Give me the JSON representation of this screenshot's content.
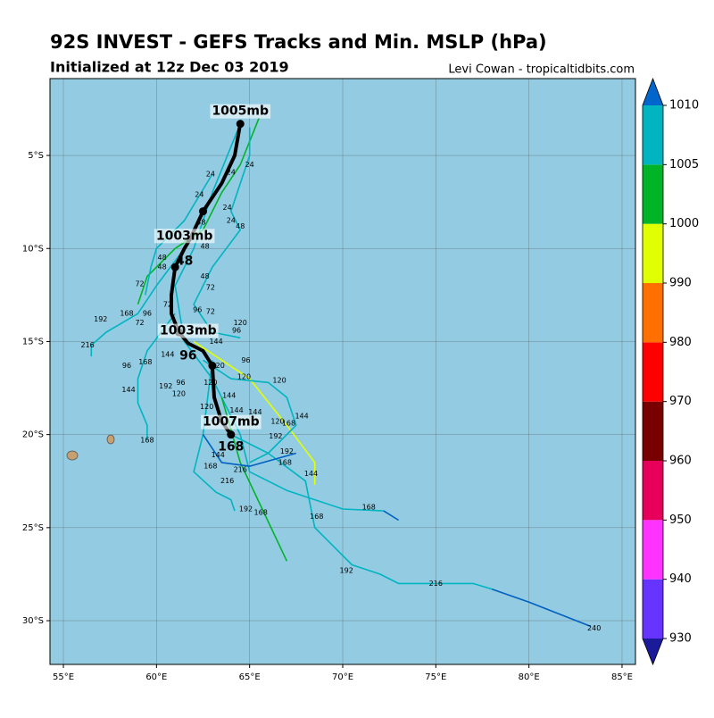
{
  "chart_data": {
    "type": "track-map",
    "title": "92S INVEST - GEFS Tracks and Min. MSLP (hPa)",
    "subtitle": "Initialized at 12z Dec 03 2019",
    "credit": "Levi Cowan - tropicaltidbits.com",
    "xlim": [
      54.28,
      85.72
    ],
    "ylim": [
      -32.35,
      -0.87
    ],
    "xticks": [
      {
        "value": 55,
        "label": "55°E"
      },
      {
        "value": 60,
        "label": "60°E"
      },
      {
        "value": 65,
        "label": "65°E"
      },
      {
        "value": 70,
        "label": "70°E"
      },
      {
        "value": 75,
        "label": "75°E"
      },
      {
        "value": 80,
        "label": "80°E"
      },
      {
        "value": 85,
        "label": "85°E"
      }
    ],
    "yticks": [
      {
        "value": -5,
        "label": "5°S"
      },
      {
        "value": -10,
        "label": "10°S"
      },
      {
        "value": -15,
        "label": "15°S"
      },
      {
        "value": -20,
        "label": "20°S"
      },
      {
        "value": -25,
        "label": "25°S"
      },
      {
        "value": -30,
        "label": "30°S"
      }
    ],
    "grid": true,
    "ocean_color": "#93cce2",
    "tracks": [
      {
        "color": "#00b4c0",
        "lon": [
          64.5,
          63,
          62,
          61,
          61.5,
          63,
          64.5,
          65,
          67,
          70,
          72.2
        ],
        "lat": [
          -3.3,
          -7,
          -10,
          -12,
          -15,
          -17,
          -20,
          -22,
          -23,
          -24,
          -24.1
        ]
      },
      {
        "color": "#0060c0",
        "lon": [
          72.2,
          73
        ],
        "lat": [
          -24.1,
          -24.6
        ]
      },
      {
        "color": "#00b4c0",
        "lon": [
          64,
          66,
          68,
          68.5,
          69.5,
          70.5,
          72,
          73,
          77,
          78
        ],
        "lat": [
          -20,
          -21,
          -22.5,
          -25,
          -26,
          -27,
          -27.5,
          -28,
          -28,
          -28.3
        ]
      },
      {
        "color": "#0060c0",
        "lon": [
          78,
          80,
          83.3
        ],
        "lat": [
          -28.3,
          -29,
          -30.3
        ]
      },
      {
        "color": "#00b428",
        "lon": [
          63.5,
          64.5,
          67
        ],
        "lat": [
          -18,
          -21.5,
          -26.8
        ]
      },
      {
        "color": "#e0ff00",
        "lon": [
          62,
          65,
          67,
          68.5,
          68.5
        ],
        "lat": [
          -15,
          -17,
          -19.5,
          -21.5,
          -22.7
        ]
      },
      {
        "color": "#00b4c0",
        "lon": [
          61.5,
          60,
          59,
          57.3,
          56.5,
          56.5
        ],
        "lat": [
          -10,
          -12,
          -13.5,
          -14.5,
          -15.2,
          -15.8
        ]
      },
      {
        "color": "#00b4c0",
        "lon": [
          61,
          59.5,
          59,
          59,
          59.5,
          59.5
        ],
        "lat": [
          -13.5,
          -15.5,
          -17,
          -18.3,
          -19.5,
          -20.3
        ]
      },
      {
        "color": "#00b4c0",
        "lon": [
          63,
          62.5,
          62,
          63.2,
          64,
          64.2
        ],
        "lat": [
          -16,
          -20,
          -22,
          -23.1,
          -23.5,
          -24.1
        ]
      },
      {
        "color": "#00b428",
        "lon": [
          65.5,
          64.5,
          63.5,
          62.5,
          61,
          59.5,
          59
        ],
        "lat": [
          -3,
          -5.5,
          -7,
          -9,
          -10,
          -11.5,
          -13
        ]
      },
      {
        "color": "#00b4c0",
        "lon": [
          65,
          65,
          64,
          64.5,
          63,
          62,
          63,
          64.5
        ],
        "lat": [
          -3.5,
          -5,
          -8,
          -9,
          -11,
          -13,
          -14.5,
          -14.8
        ]
      },
      {
        "color": "#00b4c0",
        "lon": [
          62.5,
          64,
          66,
          67,
          67.5,
          66,
          65
        ],
        "lat": [
          -16,
          -17,
          -17.2,
          -18,
          -19.5,
          -21,
          -21.5
        ]
      },
      {
        "color": "#0060c0",
        "lon": [
          62.5,
          63.5,
          65,
          67.5
        ],
        "lat": [
          -20,
          -21.5,
          -21.7,
          -21
        ]
      },
      {
        "color": "#00b4c0",
        "lon": [
          63,
          61.5,
          60,
          59.7,
          59.4
        ],
        "lat": [
          -6,
          -8.5,
          -10,
          -11,
          -12.5
        ]
      }
    ],
    "hour_labels": [
      {
        "label": "24",
        "lon": 62.9,
        "lat": -6
      },
      {
        "label": "24",
        "lon": 64,
        "lat": -5.9
      },
      {
        "label": "24",
        "lon": 65,
        "lat": -5.5
      },
      {
        "label": "24",
        "lon": 62.3,
        "lat": -7.1
      },
      {
        "label": "24",
        "lon": 63.8,
        "lat": -7.8
      },
      {
        "label": "24",
        "lon": 64,
        "lat": -8.5
      },
      {
        "label": "48",
        "lon": 64.5,
        "lat": -8.8
      },
      {
        "label": "48",
        "lon": 62.4,
        "lat": -8.6
      },
      {
        "label": "48",
        "lon": 60.3,
        "lat": -10.5
      },
      {
        "label": "48",
        "lon": 60.3,
        "lat": -11
      },
      {
        "label": "48",
        "lon": 62.6,
        "lat": -11.5
      },
      {
        "label": "48",
        "lon": 62.6,
        "lat": -9.9
      },
      {
        "label": "72",
        "lon": 59.1,
        "lat": -11.9
      },
      {
        "label": "72",
        "lon": 62.9,
        "lat": -12.1
      },
      {
        "label": "72",
        "lon": 60.6,
        "lat": -13
      },
      {
        "label": "72",
        "lon": 62.9,
        "lat": -13.4
      },
      {
        "label": "72",
        "lon": 59.1,
        "lat": -14
      },
      {
        "label": "96",
        "lon": 62.2,
        "lat": -13.3
      },
      {
        "label": "96",
        "lon": 64.3,
        "lat": -14.4
      },
      {
        "label": "96",
        "lon": 59.5,
        "lat": -13.5
      },
      {
        "label": "96",
        "lon": 64.8,
        "lat": -16
      },
      {
        "label": "96",
        "lon": 58.4,
        "lat": -16.3
      },
      {
        "label": "96",
        "lon": 61.3,
        "lat": -17.2
      },
      {
        "label": "120",
        "lon": 64.5,
        "lat": -14
      },
      {
        "label": "120",
        "lon": 63.3,
        "lat": -16.3
      },
      {
        "label": "120",
        "lon": 62.9,
        "lat": -17.2
      },
      {
        "label": "120",
        "lon": 64.7,
        "lat": -16.9
      },
      {
        "label": "120",
        "lon": 66.6,
        "lat": -17.1
      },
      {
        "label": "120",
        "lon": 61.2,
        "lat": -17.8
      },
      {
        "label": "120",
        "lon": 62.7,
        "lat": -18.5
      },
      {
        "label": "120",
        "lon": 66.5,
        "lat": -19.3
      },
      {
        "label": "144",
        "lon": 63.2,
        "lat": -15
      },
      {
        "label": "144",
        "lon": 60.6,
        "lat": -15.7
      },
      {
        "label": "144",
        "lon": 58.5,
        "lat": -17.6
      },
      {
        "label": "144",
        "lon": 63.9,
        "lat": -17.9
      },
      {
        "label": "144",
        "lon": 64.3,
        "lat": -18.7
      },
      {
        "label": "144",
        "lon": 65.3,
        "lat": -18.8
      },
      {
        "label": "144",
        "lon": 67.8,
        "lat": -19
      },
      {
        "label": "144",
        "lon": 63.3,
        "lat": -21.1
      },
      {
        "label": "144",
        "lon": 68.3,
        "lat": -22.1
      },
      {
        "label": "168",
        "lon": 59.4,
        "lat": -16.1
      },
      {
        "label": "168",
        "lon": 67.1,
        "lat": -19.4
      },
      {
        "label": "168",
        "lon": 59.5,
        "lat": -20.3
      },
      {
        "label": "168",
        "lon": 62.9,
        "lat": -21.7
      },
      {
        "label": "168",
        "lon": 66.9,
        "lat": -21.5
      },
      {
        "label": "168",
        "lon": 65.6,
        "lat": -24.2
      },
      {
        "label": "168",
        "lon": 68.6,
        "lat": -24.4
      },
      {
        "label": "168",
        "lon": 71.4,
        "lat": -23.9
      },
      {
        "label": "168",
        "lon": 58.4,
        "lat": -13.5
      },
      {
        "label": "192",
        "lon": 57,
        "lat": -13.8
      },
      {
        "label": "192",
        "lon": 60.5,
        "lat": -17.4
      },
      {
        "label": "192",
        "lon": 66.4,
        "lat": -20.1
      },
      {
        "label": "192",
        "lon": 67,
        "lat": -20.9
      },
      {
        "label": "192",
        "lon": 64.8,
        "lat": -24
      },
      {
        "label": "192",
        "lon": 70.2,
        "lat": -27.3
      },
      {
        "label": "216",
        "lon": 56.3,
        "lat": -15.2
      },
      {
        "label": "216",
        "lon": 64.5,
        "lat": -21.9
      },
      {
        "label": "216",
        "lon": 63.8,
        "lat": -22.5
      },
      {
        "label": "216",
        "lon": 75,
        "lat": -28
      },
      {
        "label": "240",
        "lon": 83.5,
        "lat": -30.4
      }
    ],
    "mean_track": {
      "color": "#000000",
      "lon": [
        64.5,
        64.2,
        63.5,
        62.5,
        61.8,
        61.5,
        61,
        60.8,
        60.8,
        61.2,
        61.7,
        62.5,
        63,
        63.1,
        63.5,
        64
      ],
      "lat": [
        -3.3,
        -5,
        -6.5,
        -8,
        -9.5,
        -10,
        -11,
        -12.5,
        -13.5,
        -14.5,
        -15.1,
        -15.5,
        -16.3,
        -18,
        -19.3,
        -20
      ]
    },
    "annotations": [
      {
        "label": "1005mb",
        "lon": 64.5,
        "lat": -3.3
      },
      {
        "label": "1003mb",
        "hour": "48",
        "lon": 61.5,
        "lat": -10
      },
      {
        "label": "1003mb",
        "hour": "96",
        "lon": 61.7,
        "lat": -15.1
      },
      {
        "label": "1007mb",
        "hour": "168",
        "lon": 64,
        "lat": -20
      }
    ],
    "colorbar": {
      "levels": [
        930,
        940,
        950,
        960,
        970,
        980,
        990,
        1000,
        1005,
        1010
      ],
      "colors": [
        "#6633ff",
        "#ff33ff",
        "#e6005a",
        "#780000",
        "#ff0000",
        "#ff7000",
        "#e0ff00",
        "#00b428",
        "#00b4c0"
      ],
      "under_color": "#1a1a9a",
      "over_color": "#0066cc"
    }
  }
}
